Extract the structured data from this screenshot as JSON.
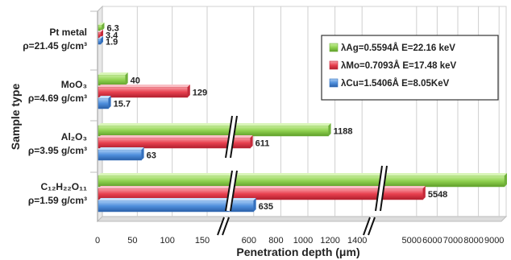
{
  "chart_data": {
    "type": "bar",
    "orientation": "horizontal",
    "title": "",
    "xlabel": "Penetration depth (μm)",
    "ylabel": "Sample type",
    "x_axis": {
      "broken": true,
      "segments": [
        {
          "range": [
            0,
            150
          ],
          "ticks": [
            0,
            50,
            100,
            150
          ]
        },
        {
          "range": [
            500,
            1500
          ],
          "ticks": [
            600,
            800,
            1000,
            1200,
            1400
          ]
        },
        {
          "range": [
            4500,
            9500
          ],
          "ticks": [
            5000,
            6000,
            7000,
            8000,
            9000
          ]
        }
      ]
    },
    "categories": [
      {
        "name": "Pt metal",
        "density": "ρ=21.45 g/cm³"
      },
      {
        "name": "MoO₃",
        "density": "ρ=4.69 g/cm³"
      },
      {
        "name": "Al₂O₃",
        "density": "ρ=3.95 g/cm³"
      },
      {
        "name": "C₁₂H₂₂O₁₁",
        "density": "ρ=1.59 g/cm³"
      }
    ],
    "series": [
      {
        "name": "λAg=0.5594Å E=22.16 keV",
        "color": "#8fd14f",
        "values": [
          6.3,
          40,
          1188,
          9500
        ],
        "labels": [
          "6.3",
          "40",
          "1188",
          ""
        ]
      },
      {
        "name": "λMo=0.7093Å E=17.48 keV",
        "color": "#e8404f",
        "values": [
          3.4,
          129,
          611,
          5548
        ],
        "labels": [
          "3.4",
          "129",
          "611",
          "5548"
        ]
      },
      {
        "name": "λCu=1.5406Å E=8.05KeV",
        "color": "#4f8fdc",
        "values": [
          1.9,
          15.7,
          63,
          635
        ],
        "labels": [
          "1.9",
          "15.7",
          "63",
          "635"
        ]
      }
    ],
    "grid": true,
    "legend": "top-right"
  }
}
